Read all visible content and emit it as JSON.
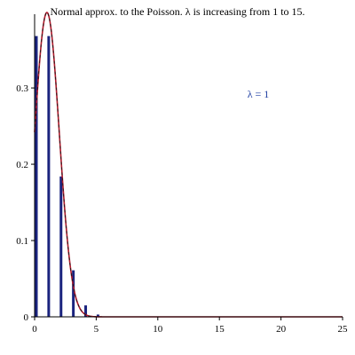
{
  "chart_data": {
    "type": "bar",
    "title": "Normal approx. to the Poisson. λ is increasing from 1 to 15.",
    "annotation": "λ = 1",
    "xlim": [
      0,
      25
    ],
    "ylim": [
      0,
      0.392
    ],
    "x_ticks": [
      0,
      5,
      10,
      15,
      20,
      25
    ],
    "x_tick_labels": [
      "0",
      "5",
      "10",
      "15",
      "20",
      "25"
    ],
    "y_ticks": [
      0,
      0.1,
      0.2,
      0.3
    ],
    "y_tick_labels": [
      "0",
      "0.1",
      "0.2",
      "0.3"
    ],
    "grid": false,
    "series": [
      {
        "type": "bar",
        "color": "#1a237e",
        "x": [
          0,
          1,
          2,
          3,
          4,
          5
        ],
        "values": [
          0.368,
          0.368,
          0.184,
          0.061,
          0.015,
          0.003
        ]
      },
      {
        "type": "line",
        "color": "#b2182b",
        "dashed_color": "#1a1a1a",
        "mean": 1,
        "sd": 1,
        "x_range": [
          0,
          25
        ]
      }
    ]
  }
}
